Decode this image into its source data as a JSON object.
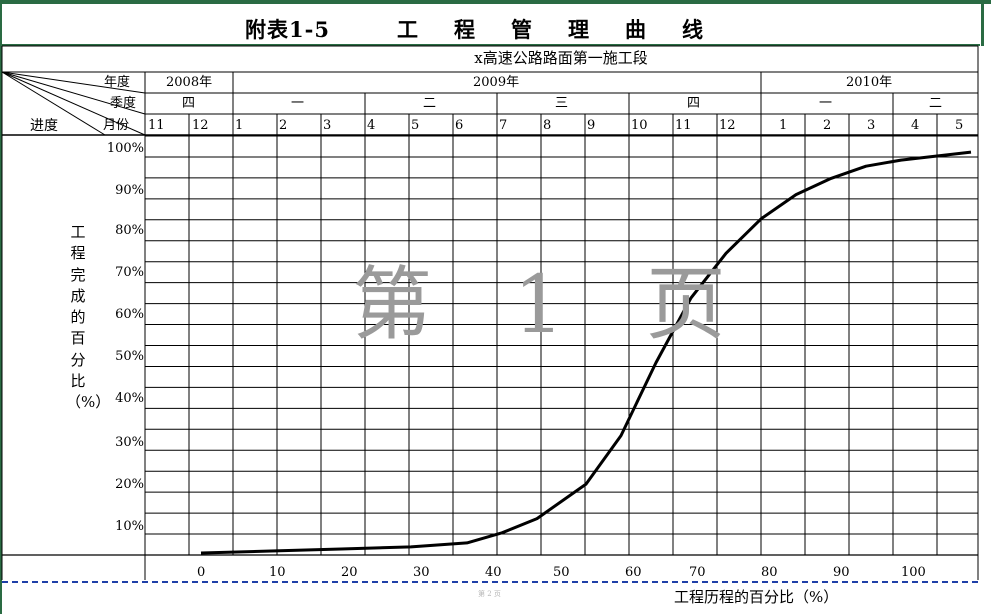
{
  "title": {
    "label": "附表1-5",
    "main": "工程管理曲线"
  },
  "subtitle": "x高速公路路面第一施工段",
  "header": {
    "year_label": "年度",
    "quarter_label": "季度",
    "progress_label": "进度",
    "month_label": "月份",
    "years": [
      "2008年",
      "2009年",
      "2010年"
    ],
    "quarters": [
      "四",
      "一",
      "二",
      "三",
      "四",
      "一",
      "二"
    ],
    "months": [
      "11",
      "12",
      "1",
      "2",
      "3",
      "4",
      "5",
      "6",
      "7",
      "8",
      "9",
      "10",
      "11",
      "12",
      "1",
      "2",
      "3",
      "4",
      "5"
    ]
  },
  "y_axis": {
    "title": "工程完成的百分比（%）",
    "ticks": [
      "100%",
      "90%",
      "80%",
      "70%",
      "60%",
      "50%",
      "40%",
      "30%",
      "20%",
      "10%"
    ]
  },
  "x_axis": {
    "title": "工程历程的百分比（%）",
    "ticks": [
      "0",
      "10",
      "20",
      "30",
      "40",
      "50",
      "60",
      "70",
      "80",
      "90",
      "100"
    ]
  },
  "watermark": "第 1 页",
  "footer_mark": "第 2 页",
  "colors": {
    "frame": "#2a6b43",
    "grid": "#000000",
    "curve": "#000000",
    "watermark": "#9a9a9a",
    "dashed_line": "#1f3fa8"
  },
  "chart_data": {
    "type": "line",
    "x": [
      0,
      10,
      20,
      30,
      38,
      43,
      48,
      55,
      60,
      65,
      70,
      75,
      80,
      85,
      90,
      95,
      100,
      105,
      110
    ],
    "y": [
      0,
      0.5,
      1,
      1.5,
      2.5,
      5,
      8.5,
      17,
      29,
      47,
      63,
      74,
      82.5,
      88.5,
      92.5,
      95.5,
      97,
      98,
      99
    ],
    "xlim": [
      -8,
      111
    ],
    "ylim": [
      0,
      100
    ],
    "xlabel": "工程历程的百分比（%）",
    "ylabel": "工程完成的百分比（%）",
    "grid": true
  }
}
